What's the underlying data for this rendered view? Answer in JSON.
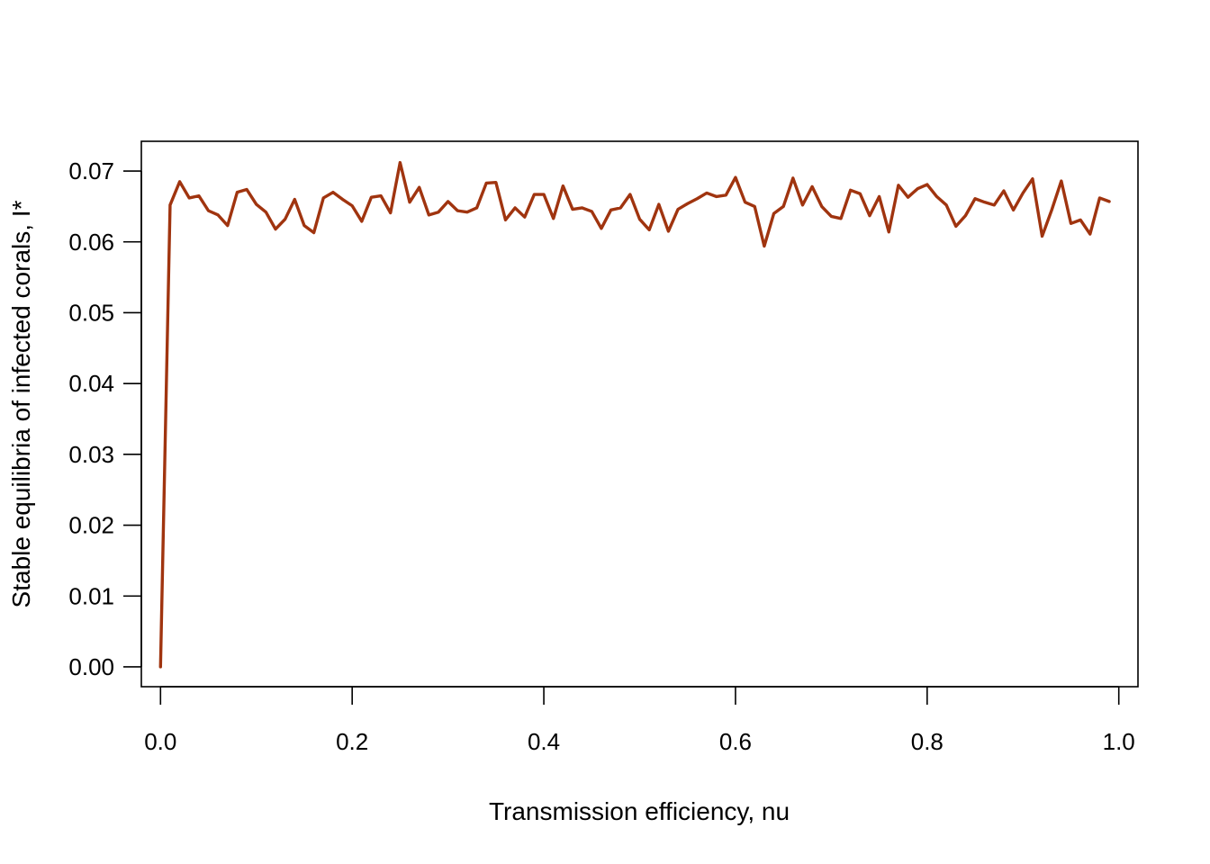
{
  "chart_data": {
    "type": "line",
    "title": "",
    "xlabel": "Transmission efficiency, nu",
    "ylabel": "Stable equilibria of infected corals, I*",
    "xlim": [
      -0.02,
      1.02
    ],
    "ylim": [
      -0.0028,
      0.0742
    ],
    "x_ticks": [
      0.0,
      0.2,
      0.4,
      0.6,
      0.8,
      1.0
    ],
    "x_tick_labels": [
      "0.0",
      "0.2",
      "0.4",
      "0.6",
      "0.8",
      "1.0"
    ],
    "y_ticks": [
      0.0,
      0.01,
      0.02,
      0.03,
      0.04,
      0.05,
      0.06,
      0.07
    ],
    "y_tick_labels": [
      "0.00",
      "0.01",
      "0.02",
      "0.03",
      "0.04",
      "0.05",
      "0.06",
      "0.07"
    ],
    "grid": false,
    "legend": "none",
    "line_color": "#a0340f",
    "series": [
      {
        "x_start": 0.0,
        "x_step": 0.01,
        "values": [
          0.0,
          0.0652,
          0.0685,
          0.0662,
          0.0665,
          0.0644,
          0.0638,
          0.0623,
          0.067,
          0.0674,
          0.0653,
          0.0642,
          0.0618,
          0.0632,
          0.066,
          0.0623,
          0.0613,
          0.0662,
          0.067,
          0.066,
          0.0651,
          0.0629,
          0.0663,
          0.0665,
          0.0641,
          0.0712,
          0.0656,
          0.0677,
          0.0638,
          0.0642,
          0.0657,
          0.0644,
          0.0642,
          0.0648,
          0.0683,
          0.0684,
          0.0631,
          0.0648,
          0.0635,
          0.0667,
          0.0667,
          0.0633,
          0.0679,
          0.0646,
          0.0648,
          0.0643,
          0.0619,
          0.0645,
          0.0648,
          0.0667,
          0.0632,
          0.0617,
          0.0653,
          0.0615,
          0.0646,
          0.0654,
          0.0661,
          0.0669,
          0.0664,
          0.0666,
          0.0691,
          0.0656,
          0.065,
          0.0594,
          0.064,
          0.065,
          0.069,
          0.0652,
          0.0678,
          0.065,
          0.0636,
          0.0633,
          0.0673,
          0.0668,
          0.0637,
          0.0664,
          0.0614,
          0.068,
          0.0663,
          0.0675,
          0.0681,
          0.0664,
          0.0652,
          0.0622,
          0.0637,
          0.0661,
          0.0656,
          0.0652,
          0.0672,
          0.0645,
          0.0669,
          0.0689,
          0.0608,
          0.0645,
          0.0686,
          0.0626,
          0.0631,
          0.0611,
          0.0662,
          0.0657
        ]
      }
    ]
  }
}
